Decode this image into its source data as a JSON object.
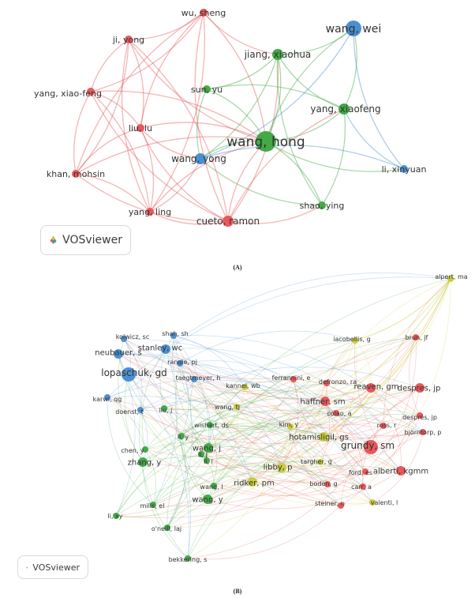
{
  "colors": {
    "red": "#e8585a",
    "green": "#43a947",
    "blue": "#4b8fd1",
    "yellow": "#c9cc3f"
  },
  "network_a": {
    "caption": "(A)",
    "logo_label": "VOSviewer",
    "logo_icon": "vosviewer-logo-icon",
    "nodes": [
      {
        "id": "wu_sheng",
        "label": "wu, sheng",
        "cluster": "red",
        "weight": 1
      },
      {
        "id": "ji_yong",
        "label": "ji, yong",
        "cluster": "red",
        "weight": 1
      },
      {
        "id": "yang_xiao_feng",
        "label": "yang, xiao-feng",
        "cluster": "red",
        "weight": 1
      },
      {
        "id": "liu_lu",
        "label": "liu, lu",
        "cluster": "red",
        "weight": 1
      },
      {
        "id": "khan_mohsin",
        "label": "khan, mohsin",
        "cluster": "red",
        "weight": 1
      },
      {
        "id": "yang_ling",
        "label": "yang, ling",
        "cluster": "red",
        "weight": 1
      },
      {
        "id": "cueto_ramon",
        "label": "cueto, ramon",
        "cluster": "red",
        "weight": 2
      },
      {
        "id": "jiang_xiaohua",
        "label": "jiang, xiaohua",
        "cluster": "green",
        "weight": 2
      },
      {
        "id": "sun_yu",
        "label": "sun, yu",
        "cluster": "green",
        "weight": 1
      },
      {
        "id": "wang_hong",
        "label": "wang, hong",
        "cluster": "green",
        "weight": 4
      },
      {
        "id": "yang_xiaofeng",
        "label": "yang, xiaofeng",
        "cluster": "green",
        "weight": 2
      },
      {
        "id": "shao_ying",
        "label": "shao, ying",
        "cluster": "green",
        "weight": 1
      },
      {
        "id": "wang_wei",
        "label": "wang, wei",
        "cluster": "blue",
        "weight": 3
      },
      {
        "id": "wang_yong",
        "label": "wang, yong",
        "cluster": "blue",
        "weight": 2
      },
      {
        "id": "li_xinyuan",
        "label": "li, xinyuan",
        "cluster": "blue",
        "weight": 1
      }
    ],
    "links": [
      [
        "wu_sheng",
        "ji_yong"
      ],
      [
        "wu_sheng",
        "liu_lu"
      ],
      [
        "wu_sheng",
        "yang_xiao_feng"
      ],
      [
        "wu_sheng",
        "khan_mohsin"
      ],
      [
        "wu_sheng",
        "yang_ling"
      ],
      [
        "wu_sheng",
        "cueto_ramon"
      ],
      [
        "wu_sheng",
        "wang_hong"
      ],
      [
        "wu_sheng",
        "jiang_xiaohua"
      ],
      [
        "ji_yong",
        "liu_lu"
      ],
      [
        "ji_yong",
        "yang_xiao_feng"
      ],
      [
        "ji_yong",
        "khan_mohsin"
      ],
      [
        "ji_yong",
        "yang_ling"
      ],
      [
        "ji_yong",
        "cueto_ramon"
      ],
      [
        "ji_yong",
        "wang_hong"
      ],
      [
        "yang_xiao_feng",
        "liu_lu"
      ],
      [
        "yang_xiao_feng",
        "khan_mohsin"
      ],
      [
        "yang_xiao_feng",
        "yang_ling"
      ],
      [
        "yang_xiao_feng",
        "cueto_ramon"
      ],
      [
        "yang_xiao_feng",
        "wang_hong"
      ],
      [
        "liu_lu",
        "khan_mohsin"
      ],
      [
        "liu_lu",
        "yang_ling"
      ],
      [
        "liu_lu",
        "cueto_ramon"
      ],
      [
        "liu_lu",
        "wang_hong"
      ],
      [
        "liu_lu",
        "wang_yong"
      ],
      [
        "khan_mohsin",
        "yang_ling"
      ],
      [
        "khan_mohsin",
        "cueto_ramon"
      ],
      [
        "khan_mohsin",
        "wang_hong"
      ],
      [
        "yang_ling",
        "cueto_ramon"
      ],
      [
        "yang_ling",
        "wang_hong"
      ],
      [
        "yang_ling",
        "wang_yong"
      ],
      [
        "cueto_ramon",
        "wang_hong"
      ],
      [
        "cueto_ramon",
        "jiang_xiaohua"
      ],
      [
        "cueto_ramon",
        "yang_xiaofeng"
      ],
      [
        "cueto_ramon",
        "shao_ying"
      ],
      [
        "jiang_xiaohua",
        "wang_hong"
      ],
      [
        "jiang_xiaohua",
        "yang_xiaofeng"
      ],
      [
        "jiang_xiaohua",
        "sun_yu"
      ],
      [
        "jiang_xiaohua",
        "shao_ying"
      ],
      [
        "jiang_xiaohua",
        "wang_yong"
      ],
      [
        "jiang_xiaohua",
        "wang_wei"
      ],
      [
        "sun_yu",
        "wang_hong"
      ],
      [
        "sun_yu",
        "wang_yong"
      ],
      [
        "sun_yu",
        "yang_xiaofeng"
      ],
      [
        "wang_hong",
        "yang_xiaofeng"
      ],
      [
        "wang_hong",
        "shao_ying"
      ],
      [
        "wang_hong",
        "wang_yong"
      ],
      [
        "wang_hong",
        "wang_wei"
      ],
      [
        "wang_hong",
        "li_xinyuan"
      ],
      [
        "yang_xiaofeng",
        "shao_ying"
      ],
      [
        "yang_xiaofeng",
        "wang_wei"
      ],
      [
        "shao_ying",
        "wang_yong"
      ],
      [
        "wang_wei",
        "li_xinyuan"
      ],
      [
        "wang_wei",
        "wang_yong"
      ],
      [
        "li_xinyuan",
        "wang_yong"
      ],
      [
        "li_xinyuan",
        "yang_xiaofeng"
      ]
    ]
  },
  "network_b": {
    "caption": "(B)",
    "logo_label": "VOSviewer",
    "logo_icon": "vosviewer-logo-icon",
    "nodes": [
      {
        "id": "alpert_ma",
        "label": "alpert, ma",
        "cluster": "yellow",
        "weight": 1
      },
      {
        "id": "brun_jf",
        "label": "brun, jf",
        "cluster": "red",
        "weight": 1
      },
      {
        "id": "iacobellis_g",
        "label": "iacobellis, g",
        "cluster": "yellow",
        "weight": 1
      },
      {
        "id": "kolwicz_sc",
        "label": "kolwicz, sc",
        "cluster": "blue",
        "weight": 1
      },
      {
        "id": "shah_sh",
        "label": "shah, sh",
        "cluster": "blue",
        "weight": 1
      },
      {
        "id": "stanley_wc",
        "label": "stanley, wc",
        "cluster": "blue",
        "weight": 2
      },
      {
        "id": "neubauer_s",
        "label": "neubauer, s",
        "cluster": "blue",
        "weight": 2
      },
      {
        "id": "randle_pj",
        "label": "randle, pj",
        "cluster": "blue",
        "weight": 1
      },
      {
        "id": "lopaschuk_gd",
        "label": "lopaschuk, gd",
        "cluster": "blue",
        "weight": 3
      },
      {
        "id": "taegtmeyer_h",
        "label": "taegtmeyer, h",
        "cluster": "blue",
        "weight": 1
      },
      {
        "id": "ferrannini_e",
        "label": "ferrannini, e",
        "cluster": "red",
        "weight": 1
      },
      {
        "id": "defronzo_ra",
        "label": "defronzo, ra",
        "cluster": "red",
        "weight": 1
      },
      {
        "id": "reaven_gm",
        "label": "reaven, gm",
        "cluster": "red",
        "weight": 2
      },
      {
        "id": "despres_jp",
        "label": "despres, jp",
        "cluster": "red",
        "weight": 2
      },
      {
        "id": "kannel_wb",
        "label": "kannel, wb",
        "cluster": "yellow",
        "weight": 1
      },
      {
        "id": "karwi_qg",
        "label": "karwi, qg",
        "cluster": "blue",
        "weight": 1
      },
      {
        "id": "wang_tj",
        "label": "wang, tj",
        "cluster": "yellow",
        "weight": 1
      },
      {
        "id": "haffner_sm",
        "label": "haffner, sm",
        "cluster": "red",
        "weight": 2
      },
      {
        "id": "doenst_t",
        "label": "doenst, t",
        "cluster": "blue",
        "weight": 1
      },
      {
        "id": "liu_j",
        "label": "liu, j",
        "cluster": "green",
        "weight": 1
      },
      {
        "id": "colao_a",
        "label": "colao, a",
        "cluster": "red",
        "weight": 1
      },
      {
        "id": "despres_jp_2",
        "label": "després, jp",
        "cluster": "red",
        "weight": 1
      },
      {
        "id": "wishart_ds",
        "label": "wishart, ds",
        "cluster": "green",
        "weight": 1
      },
      {
        "id": "kim_y",
        "label": "kim, y",
        "cluster": "yellow",
        "weight": 1
      },
      {
        "id": "bjorntorp_p",
        "label": "björntorp, p",
        "cluster": "red",
        "weight": 1
      },
      {
        "id": "ross_r",
        "label": "ross, r",
        "cluster": "red",
        "weight": 1
      },
      {
        "id": "hotamisligil_gs",
        "label": "hotamisligil, gs",
        "cluster": "yellow",
        "weight": 2
      },
      {
        "id": "li_y",
        "label": "li, y",
        "cluster": "green",
        "weight": 1
      },
      {
        "id": "grundy_sm",
        "label": "grundy, sm",
        "cluster": "red",
        "weight": 3
      },
      {
        "id": "wang_j",
        "label": "wang, j",
        "cluster": "green",
        "weight": 2
      },
      {
        "id": "chen_y",
        "label": "chen, y",
        "cluster": "green",
        "weight": 1
      },
      {
        "id": "li_j",
        "label": "li, j",
        "cluster": "green",
        "weight": 1
      },
      {
        "id": "targher_g",
        "label": "targher, g",
        "cluster": "yellow",
        "weight": 1
      },
      {
        "id": "zhang_y",
        "label": "zhang, y",
        "cluster": "green",
        "weight": 2
      },
      {
        "id": "li_l",
        "label": "li, l",
        "cluster": "green",
        "weight": 1
      },
      {
        "id": "libby_p",
        "label": "libby, p",
        "cluster": "yellow",
        "weight": 2
      },
      {
        "id": "ford_es",
        "label": "ford, es",
        "cluster": "red",
        "weight": 1
      },
      {
        "id": "alberti_kgmm",
        "label": "alberti, kgmm",
        "cluster": "red",
        "weight": 2
      },
      {
        "id": "ridker_pm",
        "label": "ridker, pm",
        "cluster": "yellow",
        "weight": 2
      },
      {
        "id": "boden_g",
        "label": "boden, g",
        "cluster": "red",
        "weight": 1
      },
      {
        "id": "carr_a",
        "label": "carr, a",
        "cluster": "red",
        "weight": 1
      },
      {
        "id": "wang_l",
        "label": "wang, l",
        "cluster": "green",
        "weight": 1
      },
      {
        "id": "wang_y",
        "label": "wang, y",
        "cluster": "green",
        "weight": 2
      },
      {
        "id": "steiner_n",
        "label": "steiner, n",
        "cluster": "red",
        "weight": 1
      },
      {
        "id": "valenti_l",
        "label": "valenti, l",
        "cluster": "yellow",
        "weight": 1
      },
      {
        "id": "mills_el",
        "label": "mills, el",
        "cluster": "green",
        "weight": 1
      },
      {
        "id": "li_xy",
        "label": "li, xy",
        "cluster": "green",
        "weight": 1
      },
      {
        "id": "oneill_laj",
        "label": "o'neill, laj",
        "cluster": "green",
        "weight": 1
      },
      {
        "id": "bekkering_s",
        "label": "bekkering, s",
        "cluster": "green",
        "weight": 1
      }
    ]
  }
}
